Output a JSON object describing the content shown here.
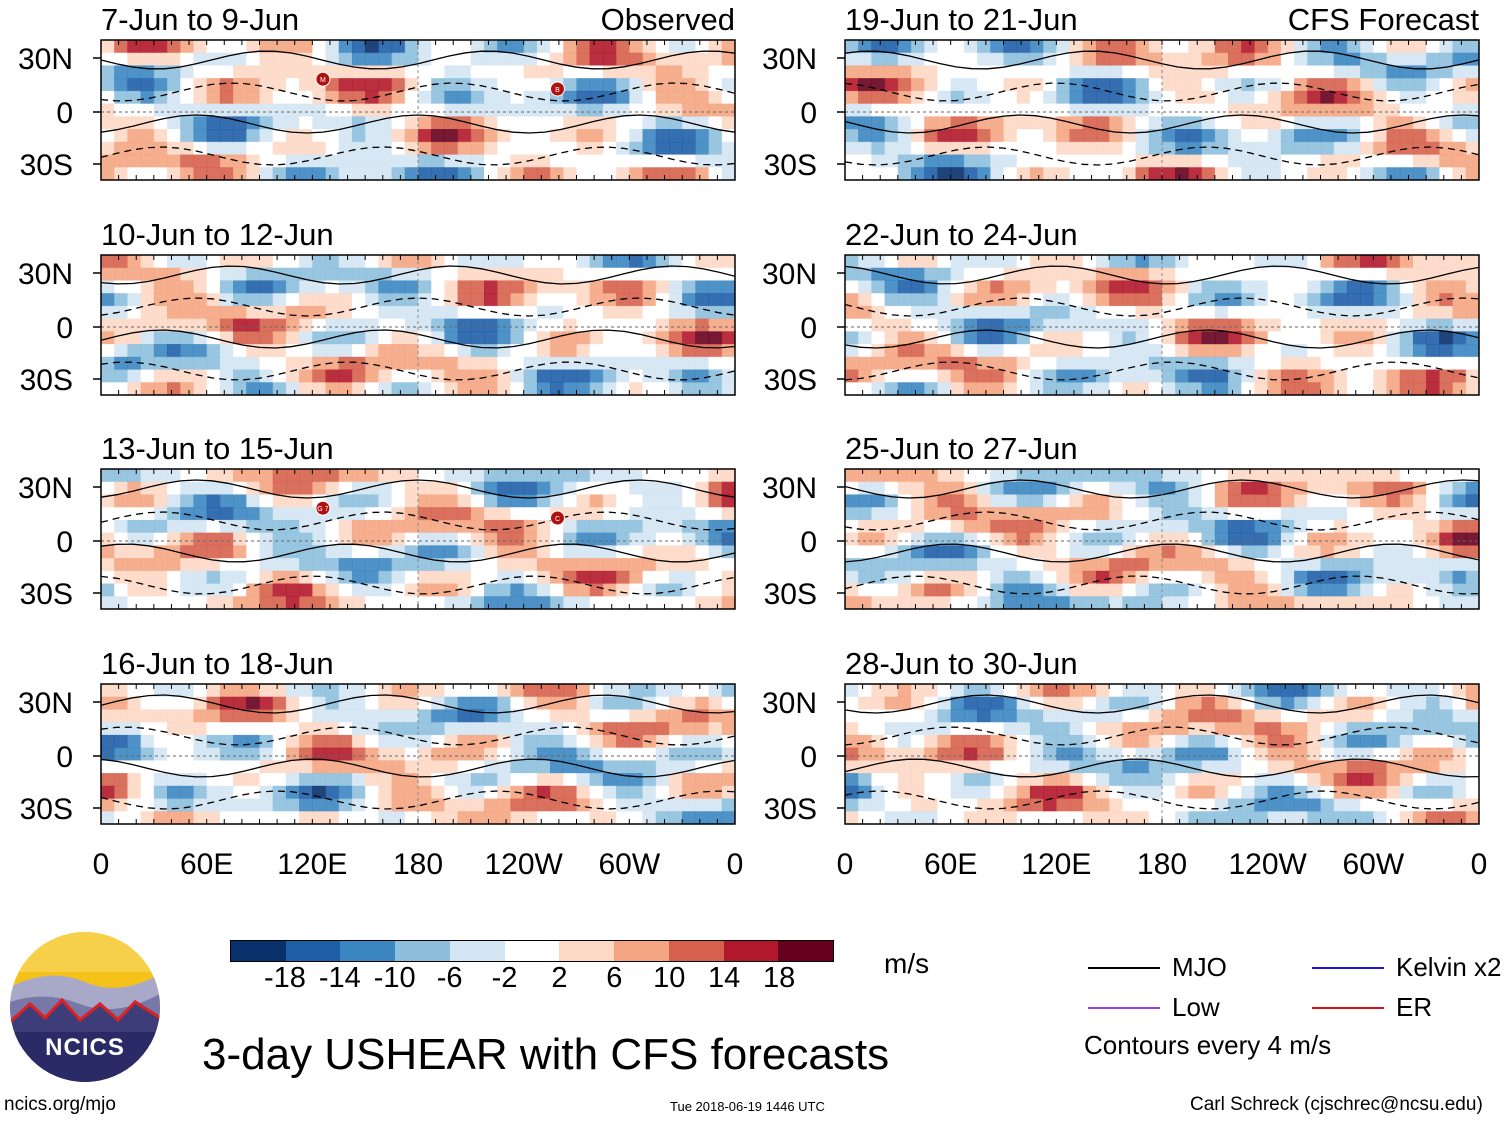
{
  "chart_data": {
    "type": "heatmap",
    "title": "3-day USHEAR with CFS forecasts",
    "variable": "USHEAR",
    "units": "m/s",
    "x_ticks": [
      "0",
      "60E",
      "120E",
      "180",
      "120W",
      "60W",
      "0"
    ],
    "y_ticks": [
      "30N",
      "0",
      "30S"
    ],
    "columns": [
      {
        "header": "Observed",
        "panels": [
          {
            "period": "7-Jun to 9-Jun",
            "storms": [
              "M",
              "B"
            ]
          },
          {
            "period": "10-Jun to 12-Jun",
            "storms": []
          },
          {
            "period": "13-Jun to 15-Jun",
            "storms": [
              "G 7",
              "C"
            ]
          },
          {
            "period": "16-Jun to 18-Jun",
            "storms": []
          }
        ]
      },
      {
        "header": "CFS Forecast",
        "panels": [
          {
            "period": "19-Jun to 21-Jun",
            "storms": []
          },
          {
            "period": "22-Jun to 24-Jun",
            "storms": []
          },
          {
            "period": "25-Jun to 27-Jun",
            "storms": []
          },
          {
            "period": "28-Jun to 30-Jun",
            "storms": []
          }
        ]
      }
    ],
    "colorbar": {
      "labels": [
        "-18",
        "-14",
        "-10",
        "-6",
        "-2",
        "2",
        "6",
        "10",
        "14",
        "18"
      ],
      "colors": [
        "#08306b",
        "#1f5fa8",
        "#3b86c1",
        "#8dbfdd",
        "#d3e6f3",
        "#ffffff",
        "#fdd8c5",
        "#f4a582",
        "#d6604d",
        "#b2182b",
        "#67001f"
      ],
      "units": "m/s"
    },
    "legend": [
      {
        "label": "MJO",
        "color": "#000000"
      },
      {
        "label": "Kelvin x2",
        "color": "#1a1adb"
      },
      {
        "label": "Low",
        "color": "#9b3fe0"
      },
      {
        "label": "ER",
        "color": "#e01010"
      }
    ],
    "contour_note": "Contours every 4 m/s"
  },
  "footer": {
    "website": "ncics.org/mjo",
    "timestamp": "Tue 2018-06-19 1446 UTC",
    "author": "Carl Schreck (cjschrec@ncsu.edu)",
    "logo_text": "NCICS"
  }
}
